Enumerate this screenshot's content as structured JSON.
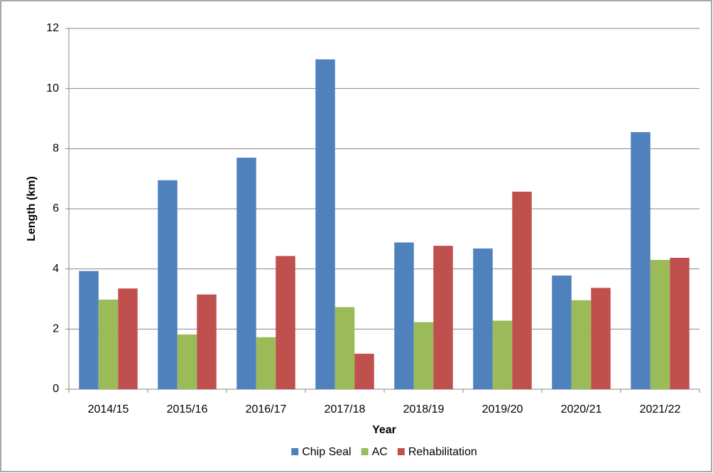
{
  "chart_data": {
    "type": "bar",
    "x_label": "Year",
    "y_label": "Length (km)",
    "categories": [
      "2014/15",
      "2015/16",
      "2016/17",
      "2017/18",
      "2018/19",
      "2019/20",
      "2020/21",
      "2021/22"
    ],
    "series": [
      {
        "name": "Chip Seal",
        "color": "#4f81bd",
        "values": [
          3.93,
          6.95,
          7.7,
          10.97,
          4.88,
          4.68,
          3.78,
          8.55
        ]
      },
      {
        "name": "AC",
        "color": "#9bbb59",
        "values": [
          2.98,
          1.82,
          1.73,
          2.73,
          2.23,
          2.28,
          2.96,
          4.3
        ]
      },
      {
        "name": "Rehabilitation",
        "color": "#c0504d",
        "values": [
          3.35,
          3.15,
          4.43,
          1.18,
          4.77,
          6.57,
          3.37,
          4.37
        ]
      }
    ],
    "ylim": [
      0,
      12
    ],
    "yticks": [
      0,
      2,
      4,
      6,
      8,
      10,
      12
    ],
    "grid": true,
    "legend": "bottom"
  }
}
